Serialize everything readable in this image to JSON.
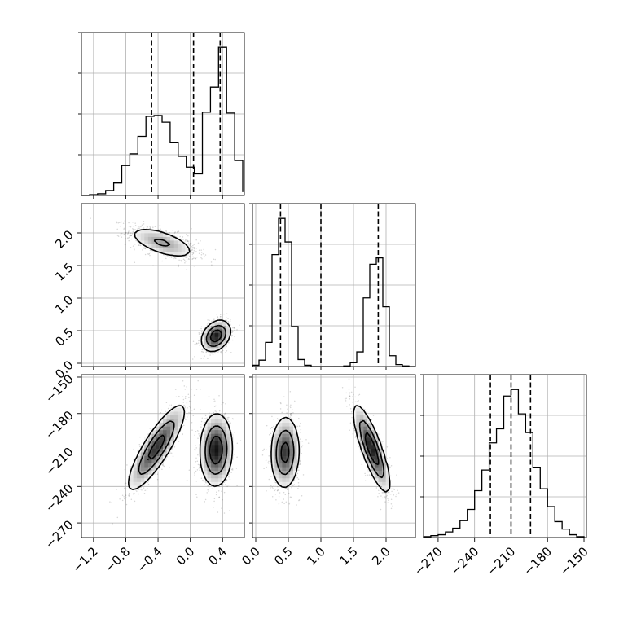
{
  "figure": {
    "type": "corner-plot",
    "background": "#ffffff",
    "ink": "#000000",
    "grid_color": "#b0b0b0"
  },
  "chart_data": {
    "type": "scatter",
    "title": "",
    "parameters": [
      {
        "label": "",
        "range": [
          -1.35,
          0.67
        ],
        "tick_values": [
          -1.2,
          -0.8,
          -0.4,
          0.0,
          0.4
        ],
        "tick_labels": [
          "−1.2",
          "−0.8",
          "−0.4",
          "0.0",
          "0.4"
        ],
        "quantiles": [
          -0.48,
          0.04,
          0.37
        ]
      },
      {
        "label": "",
        "range": [
          -0.05,
          2.45
        ],
        "tick_values": [
          0.0,
          0.5,
          1.0,
          1.5,
          2.0
        ],
        "tick_labels": [
          "0.0",
          "0.5",
          "1.0",
          "1.5",
          "2.0"
        ],
        "quantiles": [
          0.38,
          1.0,
          1.88
        ]
      },
      {
        "label": "",
        "range": [
          -282,
          -148
        ],
        "tick_values": [
          -270,
          -240,
          -210,
          -180,
          -150
        ],
        "tick_labels": [
          "−270",
          "−240",
          "−210",
          "−180",
          "−150"
        ],
        "quantiles": [
          -227,
          -210,
          -194
        ]
      }
    ],
    "histograms": [
      {
        "parameter": 0,
        "bins": [
          -1.35,
          -1.25,
          -1.15,
          -1.05,
          -0.95,
          -0.85,
          -0.75,
          -0.65,
          -0.55,
          -0.45,
          -0.35,
          -0.25,
          -0.15,
          -0.05,
          0.05,
          0.15,
          0.25,
          0.35,
          0.45,
          0.55,
          0.65
        ],
        "counts": [
          0,
          1,
          2,
          6,
          15,
          36,
          50,
          71,
          95,
          96,
          88,
          64,
          47,
          34,
          26,
          100,
          130,
          178,
          99,
          42,
          4
        ]
      },
      {
        "parameter": 1,
        "bins": [
          -0.05,
          0.05,
          0.15,
          0.25,
          0.35,
          0.45,
          0.55,
          0.65,
          0.75,
          0.85,
          0.95,
          1.05,
          1.15,
          1.25,
          1.35,
          1.45,
          1.55,
          1.65,
          1.75,
          1.85,
          1.95,
          2.05,
          2.15,
          2.25,
          2.35,
          2.45
        ],
        "counts": [
          2,
          10,
          38,
          176,
          233,
          196,
          63,
          11,
          2,
          0,
          0,
          0,
          0,
          0,
          1,
          6,
          23,
          108,
          161,
          171,
          94,
          17,
          3,
          1,
          0
        ]
      },
      {
        "parameter": 2,
        "bins": [
          -282,
          -276,
          -270,
          -264,
          -258,
          -252,
          -246,
          -240,
          -234,
          -228,
          -222,
          -216,
          -210,
          -204,
          -198,
          -192,
          -186,
          -180,
          -174,
          -168,
          -162,
          -156,
          -150
        ],
        "counts": [
          1,
          2,
          3,
          6,
          10,
          18,
          30,
          50,
          72,
          101,
          116,
          151,
          158,
          132,
          112,
          75,
          52,
          33,
          17,
          9,
          3,
          1
        ]
      }
    ],
    "pairs": [
      {
        "x": 0,
        "y": 1,
        "clusters": [
          {
            "center": [
              -0.35,
              1.85
            ],
            "sigma": [
              0.22,
              0.13
            ],
            "rho": -0.62,
            "weight": 0.5
          },
          {
            "center": [
              0.32,
              0.42
            ],
            "sigma": [
              0.09,
              0.12
            ],
            "rho": 0.3,
            "weight": 0.5
          }
        ]
      },
      {
        "x": 0,
        "y": 2,
        "clusters": [
          {
            "center": [
              -0.42,
              -208
            ],
            "sigma": [
              0.18,
              18
            ],
            "rho": 0.85,
            "weight": 0.5
          },
          {
            "center": [
              0.32,
              -210
            ],
            "sigma": [
              0.1,
              15
            ],
            "rho": 0.05,
            "weight": 0.5
          }
        ]
      },
      {
        "x": 1,
        "y": 2,
        "clusters": [
          {
            "center": [
              0.45,
              -212
            ],
            "sigma": [
              0.11,
              15
            ],
            "rho": 0.05,
            "weight": 0.5
          },
          {
            "center": [
              1.78,
              -209
            ],
            "sigma": [
              0.14,
              18
            ],
            "rho": -0.82,
            "weight": 0.5
          }
        ]
      }
    ]
  }
}
